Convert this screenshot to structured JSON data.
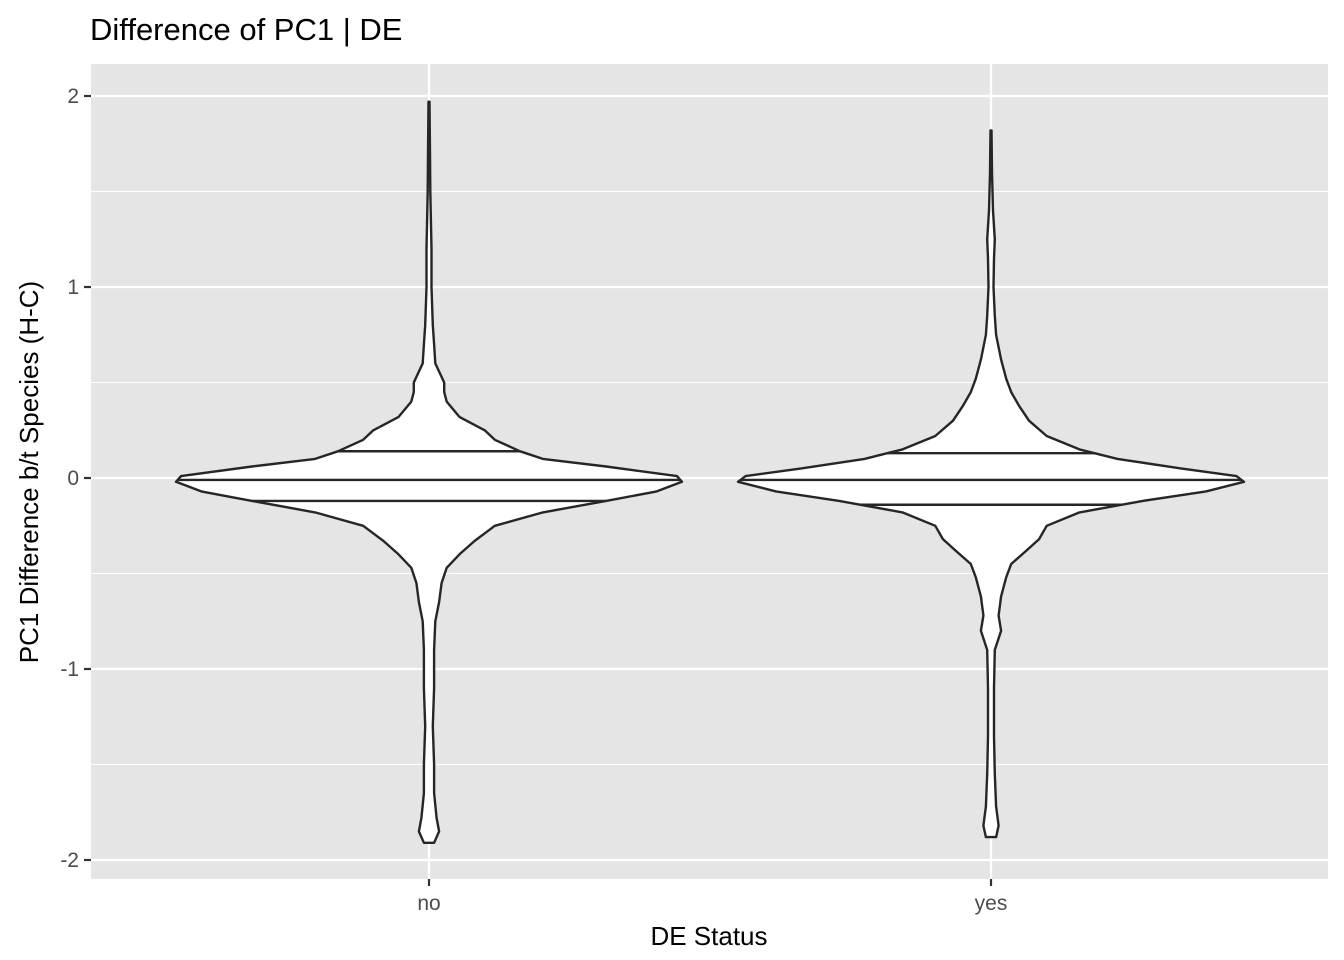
{
  "chart_data": {
    "type": "violin",
    "title": "Difference of PC1 | DE",
    "xlabel": "DE Status",
    "ylabel": "PC1 Difference b/t Species (H-C)",
    "categories": [
      "no",
      "yes"
    ],
    "ylim": [
      -2.1,
      2.17
    ],
    "y_ticks": [
      -2,
      -1,
      0,
      1,
      2
    ],
    "y_tick_labels": [
      "-2",
      "-1",
      "0",
      "1",
      "2"
    ],
    "background": "#e5e5e5",
    "grid_color": "#ffffff",
    "violin_fill": "#ffffff",
    "violin_stroke": "#262626",
    "series": [
      {
        "name": "no",
        "min": -1.91,
        "max": 1.97,
        "quantiles": [
          -0.12,
          -0.01,
          0.14
        ],
        "density": [
          [
            -1.91,
            0.02
          ],
          [
            -1.85,
            0.04
          ],
          [
            -1.78,
            0.03
          ],
          [
            -1.65,
            0.02
          ],
          [
            -1.5,
            0.02
          ],
          [
            -1.3,
            0.015
          ],
          [
            -1.1,
            0.02
          ],
          [
            -0.9,
            0.02
          ],
          [
            -0.75,
            0.025
          ],
          [
            -0.65,
            0.04
          ],
          [
            -0.55,
            0.05
          ],
          [
            -0.47,
            0.07
          ],
          [
            -0.4,
            0.12
          ],
          [
            -0.33,
            0.18
          ],
          [
            -0.25,
            0.26
          ],
          [
            -0.18,
            0.45
          ],
          [
            -0.12,
            0.7
          ],
          [
            -0.07,
            0.9
          ],
          [
            -0.02,
            1.0
          ],
          [
            0.01,
            0.98
          ],
          [
            0.06,
            0.7
          ],
          [
            0.1,
            0.45
          ],
          [
            0.14,
            0.36
          ],
          [
            0.2,
            0.26
          ],
          [
            0.25,
            0.22
          ],
          [
            0.32,
            0.12
          ],
          [
            0.4,
            0.07
          ],
          [
            0.45,
            0.06
          ],
          [
            0.5,
            0.06
          ],
          [
            0.6,
            0.025
          ],
          [
            0.7,
            0.02
          ],
          [
            0.8,
            0.015
          ],
          [
            1.0,
            0.01
          ],
          [
            1.2,
            0.01
          ],
          [
            1.5,
            0.005
          ],
          [
            1.7,
            0.004
          ],
          [
            1.97,
            0.002
          ]
        ]
      },
      {
        "name": "yes",
        "min": -1.88,
        "max": 1.82,
        "quantiles": [
          -0.14,
          -0.01,
          0.13
        ],
        "density": [
          [
            -1.88,
            0.02
          ],
          [
            -1.82,
            0.03
          ],
          [
            -1.72,
            0.02
          ],
          [
            -1.55,
            0.015
          ],
          [
            -1.35,
            0.012
          ],
          [
            -1.1,
            0.012
          ],
          [
            -0.9,
            0.015
          ],
          [
            -0.8,
            0.04
          ],
          [
            -0.72,
            0.03
          ],
          [
            -0.62,
            0.04
          ],
          [
            -0.52,
            0.06
          ],
          [
            -0.45,
            0.08
          ],
          [
            -0.38,
            0.14
          ],
          [
            -0.32,
            0.19
          ],
          [
            -0.25,
            0.22
          ],
          [
            -0.18,
            0.35
          ],
          [
            -0.12,
            0.6
          ],
          [
            -0.07,
            0.85
          ],
          [
            -0.02,
            1.0
          ],
          [
            0.01,
            0.97
          ],
          [
            0.05,
            0.75
          ],
          [
            0.1,
            0.5
          ],
          [
            0.15,
            0.35
          ],
          [
            0.22,
            0.22
          ],
          [
            0.3,
            0.15
          ],
          [
            0.38,
            0.11
          ],
          [
            0.45,
            0.08
          ],
          [
            0.52,
            0.06
          ],
          [
            0.62,
            0.04
          ],
          [
            0.75,
            0.02
          ],
          [
            0.85,
            0.015
          ],
          [
            1.0,
            0.01
          ],
          [
            1.15,
            0.012
          ],
          [
            1.25,
            0.015
          ],
          [
            1.4,
            0.008
          ],
          [
            1.6,
            0.004
          ],
          [
            1.82,
            0.002
          ]
        ]
      }
    ]
  }
}
